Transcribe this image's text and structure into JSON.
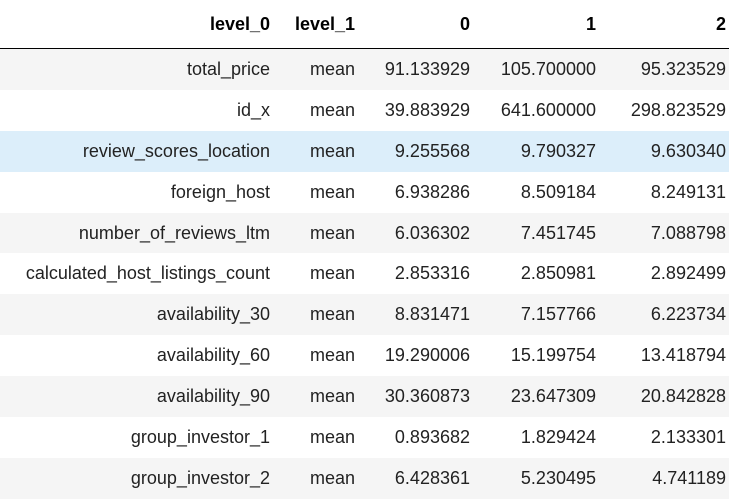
{
  "table": {
    "columns": [
      "level_0",
      "level_1",
      "0",
      "1",
      "2"
    ],
    "rows": [
      [
        "total_price",
        "mean",
        "91.133929",
        "105.700000",
        "95.323529"
      ],
      [
        "id_x",
        "mean",
        "39.883929",
        "641.600000",
        "298.823529"
      ],
      [
        "review_scores_location",
        "mean",
        "9.255568",
        "9.790327",
        "9.630340"
      ],
      [
        "foreign_host",
        "mean",
        "6.938286",
        "8.509184",
        "8.249131"
      ],
      [
        "number_of_reviews_ltm",
        "mean",
        "6.036302",
        "7.451745",
        "7.088798"
      ],
      [
        "calculated_host_listings_count",
        "mean",
        "2.853316",
        "2.850981",
        "2.892499"
      ],
      [
        "availability_30",
        "mean",
        "8.831471",
        "7.157766",
        "6.223734"
      ],
      [
        "availability_60",
        "mean",
        "19.290006",
        "15.199754",
        "13.418794"
      ],
      [
        "availability_90",
        "mean",
        "30.360873",
        "23.647309",
        "20.842828"
      ],
      [
        "group_investor_1",
        "mean",
        "0.893682",
        "1.829424",
        "2.133301"
      ],
      [
        "group_investor_2",
        "mean",
        "6.428361",
        "5.230495",
        "4.741189"
      ]
    ],
    "hovered_row_index": 2
  },
  "colors": {
    "row_stripe": "#f5f5f5",
    "row_hover": "#dceefa",
    "header_border": "#000000"
  }
}
